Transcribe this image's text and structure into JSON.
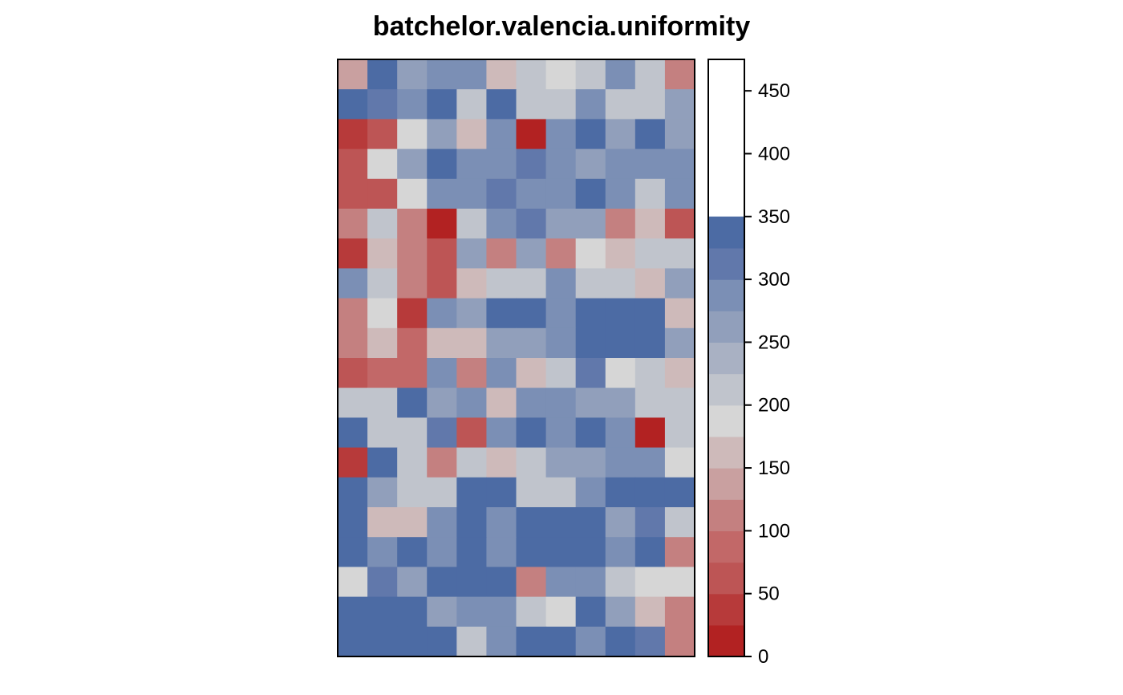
{
  "chart_data": {
    "type": "heatmap",
    "title": "batchelor.valencia.uniformity",
    "xlabel": "",
    "ylabel": "",
    "n_rows": 20,
    "n_cols": 12,
    "value_range": [
      0,
      475
    ],
    "colorbar": {
      "breaks": [
        0,
        25,
        50,
        75,
        100,
        125,
        150,
        175,
        200,
        225,
        250,
        275,
        300,
        325,
        350,
        375,
        400,
        425,
        450,
        475
      ],
      "colors": [
        "#b22222",
        "#b73a3a",
        "#bd5555",
        "#c26868",
        "#c48080",
        "#c9a0a0",
        "#cebaba",
        "#d6d6d6",
        "#c0c4cc",
        "#a9b1c3",
        "#919fbb",
        "#7b8fb5",
        "#6178ab",
        "#4c6ba4"
      ],
      "ticks": [
        0,
        50,
        100,
        150,
        200,
        250,
        300,
        350,
        400,
        450
      ],
      "tick_labels": [
        "0",
        "50",
        "100",
        "150",
        "200",
        "250",
        "300",
        "350",
        "400",
        "450"
      ]
    },
    "grid_values": [
      [
        140,
        400,
        260,
        290,
        290,
        150,
        215,
        185,
        215,
        290,
        215,
        110
      ],
      [
        390,
        320,
        290,
        390,
        215,
        390,
        215,
        215,
        290,
        215,
        215,
        260
      ],
      [
        40,
        70,
        185,
        260,
        150,
        290,
        10,
        290,
        465,
        260,
        330,
        260
      ],
      [
        70,
        185,
        260,
        350,
        290,
        290,
        320,
        290,
        260,
        290,
        290,
        290
      ],
      [
        70,
        70,
        185,
        290,
        290,
        320,
        290,
        290,
        390,
        290,
        215,
        290
      ],
      [
        110,
        215,
        110,
        10,
        215,
        290,
        320,
        260,
        260,
        110,
        150,
        70
      ],
      [
        40,
        150,
        110,
        70,
        260,
        110,
        260,
        110,
        185,
        150,
        215,
        215
      ],
      [
        290,
        215,
        110,
        70,
        150,
        215,
        215,
        290,
        215,
        215,
        150,
        260
      ],
      [
        110,
        185,
        40,
        290,
        260,
        350,
        350,
        290,
        350,
        350,
        390,
        150
      ],
      [
        110,
        150,
        90,
        150,
        150,
        260,
        260,
        290,
        350,
        350,
        350,
        260
      ],
      [
        70,
        90,
        90,
        290,
        110,
        290,
        150,
        215,
        320,
        185,
        215,
        150
      ],
      [
        215,
        215,
        350,
        260,
        290,
        150,
        290,
        290,
        260,
        260,
        215,
        215
      ],
      [
        430,
        215,
        215,
        320,
        70,
        290,
        430,
        290,
        390,
        290,
        10,
        215
      ],
      [
        40,
        350,
        215,
        110,
        215,
        150,
        215,
        260,
        260,
        290,
        290,
        185
      ],
      [
        430,
        260,
        215,
        215,
        350,
        390,
        215,
        215,
        290,
        390,
        390,
        350
      ],
      [
        390,
        150,
        150,
        290,
        465,
        290,
        390,
        350,
        350,
        260,
        320,
        215
      ],
      [
        350,
        290,
        390,
        290,
        465,
        290,
        430,
        350,
        390,
        290,
        350,
        110
      ],
      [
        185,
        320,
        260,
        350,
        350,
        350,
        110,
        290,
        290,
        215,
        185,
        185
      ],
      [
        350,
        350,
        390,
        260,
        290,
        290,
        215,
        185,
        350,
        260,
        150,
        110
      ],
      [
        390,
        350,
        465,
        390,
        215,
        290,
        350,
        390,
        290,
        350,
        320,
        110
      ]
    ]
  }
}
